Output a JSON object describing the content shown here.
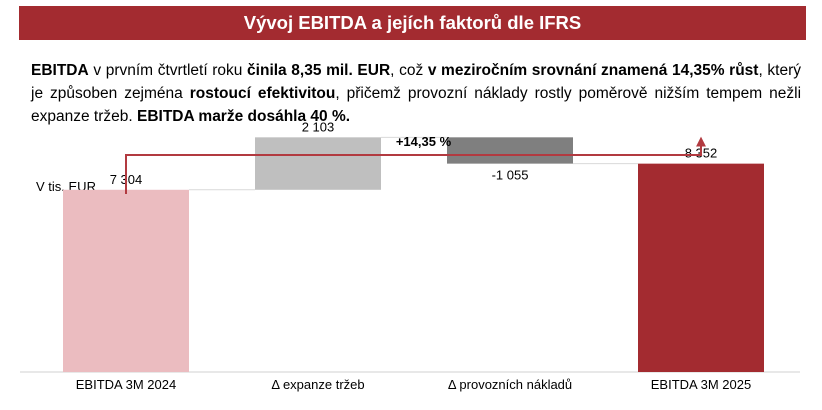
{
  "header": {
    "title": "Vývoj EBITDA a jejích faktorů dle IFRS"
  },
  "summary": {
    "segments": [
      {
        "text": "EBITDA",
        "bold": true
      },
      {
        "text": " v prvním čtvrtletí roku ",
        "bold": false
      },
      {
        "text": "činila 8,35 mil. EUR",
        "bold": true
      },
      {
        "text": ", což ",
        "bold": false
      },
      {
        "text": "v meziročním srovnání znamená 14,35% růst",
        "bold": true
      },
      {
        "text": ", který je způsoben zejména ",
        "bold": false
      },
      {
        "text": "rostoucí efektivitou",
        "bold": true
      },
      {
        "text": ", přičemž provozní náklady rostly poměrově nižším tempem nežli expanze tržeb. ",
        "bold": false
      },
      {
        "text": "EBITDA marže dosáhla 40 %.",
        "bold": true
      }
    ]
  },
  "chart_data": {
    "type": "bar",
    "subtype": "waterfall",
    "unit_label": "V tis. EUR",
    "categories": [
      "EBITDA 3M 2024",
      "Δ expanze tržeb",
      "Δ provozních nákladů",
      "EBITDA 3M 2025"
    ],
    "values": [
      7304,
      2103,
      -1055,
      8352
    ],
    "value_labels": [
      "7 304",
      "2 103",
      "-1 055",
      "8 352"
    ],
    "bar_kinds": [
      "total",
      "delta",
      "delta",
      "total"
    ],
    "ylim": [
      0,
      9500
    ],
    "annotation": "+14,35 %",
    "colors": {
      "start_total": "#ebbcc0",
      "increase": "#bfbfbf",
      "decrease": "#7f7f7f",
      "end_total": "#a32b30",
      "arrow": "#b23a40",
      "connector": "#d9d9d9"
    },
    "grid": false,
    "legend": "none"
  }
}
